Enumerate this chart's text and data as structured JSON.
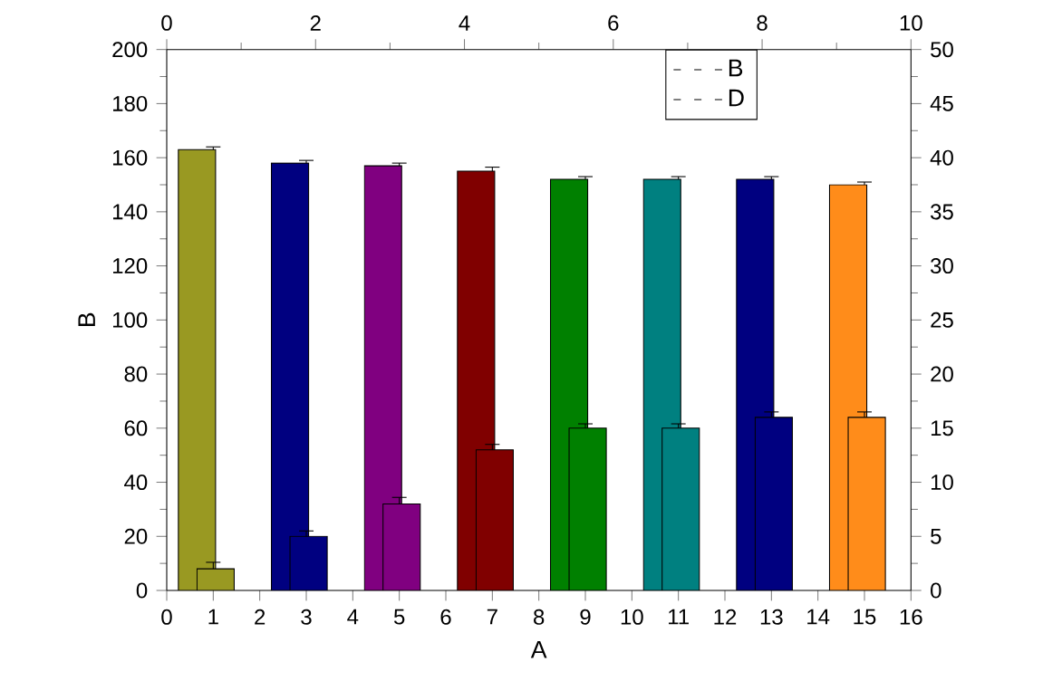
{
  "chart_data": {
    "type": "bar",
    "xlabel": "A",
    "ylabel": "B",
    "xlim": [
      0,
      16
    ],
    "xticks": [
      0,
      1,
      2,
      3,
      4,
      5,
      6,
      7,
      8,
      9,
      10,
      11,
      12,
      13,
      14,
      15,
      16
    ],
    "x2lim": [
      0,
      10
    ],
    "x2ticks": [
      0,
      2,
      4,
      6,
      8,
      10
    ],
    "ylim": [
      0,
      200
    ],
    "yticks": [
      0,
      20,
      40,
      60,
      80,
      100,
      120,
      140,
      160,
      180,
      200
    ],
    "y2lim": [
      0,
      50
    ],
    "y2ticks": [
      0,
      5,
      10,
      15,
      20,
      25,
      30,
      35,
      40,
      45,
      50
    ],
    "legend": "top right",
    "series": [
      {
        "name": "B",
        "x": [
          1,
          3,
          5,
          7,
          9,
          11,
          13,
          15
        ],
        "values": [
          163,
          158,
          157,
          155,
          152,
          152,
          152,
          150
        ],
        "errors": [
          1,
          1,
          1,
          1.5,
          1,
          1,
          1,
          1
        ],
        "colors": [
          "#999922",
          "#000080",
          "#800080",
          "#800000",
          "#008000",
          "#008080",
          "#000080",
          "#ff8c1a"
        ]
      },
      {
        "name": "D",
        "axis": "y2",
        "x": [
          1,
          3,
          5,
          7,
          9,
          11,
          13,
          15
        ],
        "values": [
          2,
          5,
          8,
          13,
          15,
          15,
          16,
          16
        ],
        "errors": [
          0.6,
          0.5,
          0.6,
          0.5,
          0.4,
          0.4,
          0.5,
          0.5
        ],
        "colors": [
          "#999922",
          "#000080",
          "#800080",
          "#800000",
          "#008000",
          "#008080",
          "#000080",
          "#ff8c1a"
        ]
      }
    ]
  }
}
